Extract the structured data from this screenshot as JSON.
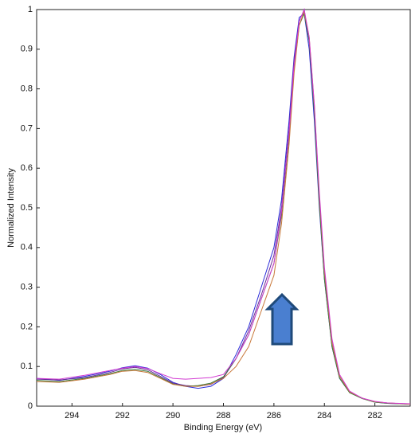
{
  "chart_data": {
    "type": "line",
    "xlabel": "Binding Energy (eV)",
    "ylabel": "Normalized Intensity",
    "x": [
      295.4,
      294.5,
      293.5,
      292.5,
      292,
      291.5,
      291,
      290.5,
      290,
      289.5,
      289,
      288.5,
      288,
      287.5,
      287,
      286.5,
      286,
      285.7,
      285.4,
      285.2,
      285,
      284.8,
      284.6,
      284.4,
      284.2,
      284,
      283.7,
      283.4,
      283,
      282.5,
      282,
      281.5,
      280.6
    ],
    "xlim": [
      295.4,
      280.6
    ],
    "xticks": [
      294,
      292,
      290,
      288,
      286,
      284,
      282
    ],
    "ylim": [
      0,
      1
    ],
    "yticks": [
      0,
      0.1,
      0.2,
      0.3,
      0.4,
      0.5,
      0.6,
      0.7,
      0.8,
      0.9,
      1
    ],
    "series": [
      {
        "color": "#2b2bd9",
        "values": [
          0.07,
          0.065,
          0.075,
          0.088,
          0.097,
          0.102,
          0.096,
          0.08,
          0.06,
          0.05,
          0.045,
          0.05,
          0.07,
          0.13,
          0.2,
          0.3,
          0.4,
          0.52,
          0.72,
          0.88,
          0.98,
          0.99,
          0.9,
          0.72,
          0.5,
          0.32,
          0.15,
          0.07,
          0.035,
          0.02,
          0.01,
          0.007,
          0.005
        ]
      },
      {
        "color": "#6a2a9a",
        "values": [
          0.068,
          0.066,
          0.072,
          0.085,
          0.094,
          0.098,
          0.092,
          0.075,
          0.058,
          0.052,
          0.05,
          0.055,
          0.072,
          0.12,
          0.19,
          0.28,
          0.38,
          0.5,
          0.7,
          0.87,
          0.97,
          1.0,
          0.92,
          0.75,
          0.52,
          0.33,
          0.16,
          0.075,
          0.036,
          0.02,
          0.011,
          0.008,
          0.005
        ]
      },
      {
        "color": "#3a7a3a",
        "values": [
          0.065,
          0.062,
          0.07,
          0.082,
          0.09,
          0.093,
          0.088,
          0.072,
          0.056,
          0.05,
          0.052,
          0.058,
          0.074,
          0.12,
          0.18,
          0.27,
          0.36,
          0.48,
          0.68,
          0.85,
          0.96,
          0.99,
          0.92,
          0.74,
          0.51,
          0.32,
          0.15,
          0.07,
          0.034,
          0.019,
          0.01,
          0.007,
          0.005
        ]
      },
      {
        "color": "#c8783a",
        "values": [
          0.062,
          0.06,
          0.068,
          0.08,
          0.088,
          0.09,
          0.085,
          0.07,
          0.055,
          0.05,
          0.05,
          0.056,
          0.07,
          0.1,
          0.15,
          0.24,
          0.33,
          0.46,
          0.66,
          0.84,
          0.96,
          0.995,
          0.93,
          0.76,
          0.53,
          0.34,
          0.16,
          0.075,
          0.036,
          0.02,
          0.011,
          0.008,
          0.005
        ]
      },
      {
        "color": "#d23ad2",
        "values": [
          0.07,
          0.068,
          0.078,
          0.09,
          0.096,
          0.1,
          0.095,
          0.082,
          0.07,
          0.068,
          0.07,
          0.072,
          0.08,
          0.12,
          0.18,
          0.27,
          0.36,
          0.49,
          0.69,
          0.86,
          0.97,
          1.0,
          0.93,
          0.76,
          0.54,
          0.35,
          0.17,
          0.08,
          0.038,
          0.02,
          0.012,
          0.008,
          0.006
        ]
      }
    ]
  }
}
